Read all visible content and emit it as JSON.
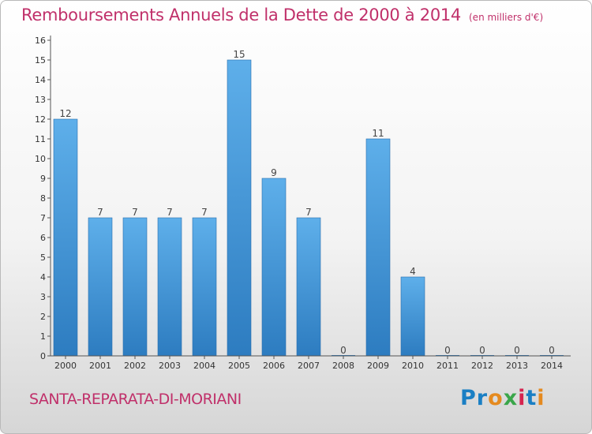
{
  "chart_data": {
    "type": "bar",
    "title": "Remboursements Annuels de la Dette de 2000 à 2014",
    "subtitle": "(en milliers d'€)",
    "categories": [
      "2000",
      "2001",
      "2002",
      "2003",
      "2004",
      "2005",
      "2006",
      "2007",
      "2008",
      "2009",
      "2010",
      "2011",
      "2012",
      "2013",
      "2014"
    ],
    "values": [
      12,
      7,
      7,
      7,
      7,
      15,
      9,
      7,
      0,
      11,
      4,
      0,
      0,
      0,
      0
    ],
    "value_labels": [
      "12",
      "7",
      "7",
      "7",
      "7",
      "15",
      "9",
      "7",
      "0",
      "11",
      "4",
      "0",
      "0",
      "0",
      "0"
    ],
    "yticks": [
      "0",
      "1",
      "2",
      "3",
      "4",
      "5",
      "6",
      "7",
      "8",
      "9",
      "10",
      "11",
      "12",
      "13",
      "14",
      "15",
      "16"
    ],
    "ylim": [
      0,
      16
    ],
    "grid": false,
    "bar_color": "#4f9fdc"
  },
  "footer": {
    "commune": "SANTA-REPARATA-DI-MORIANI",
    "logo": "Proxiti"
  },
  "colors": {
    "title": "#c0306a",
    "logo_letters": [
      "#1a7fc4",
      "#1a7fc4",
      "#e58a1f",
      "#3aa64a",
      "#d6244f",
      "#1a7fc4",
      "#e58a1f"
    ]
  }
}
